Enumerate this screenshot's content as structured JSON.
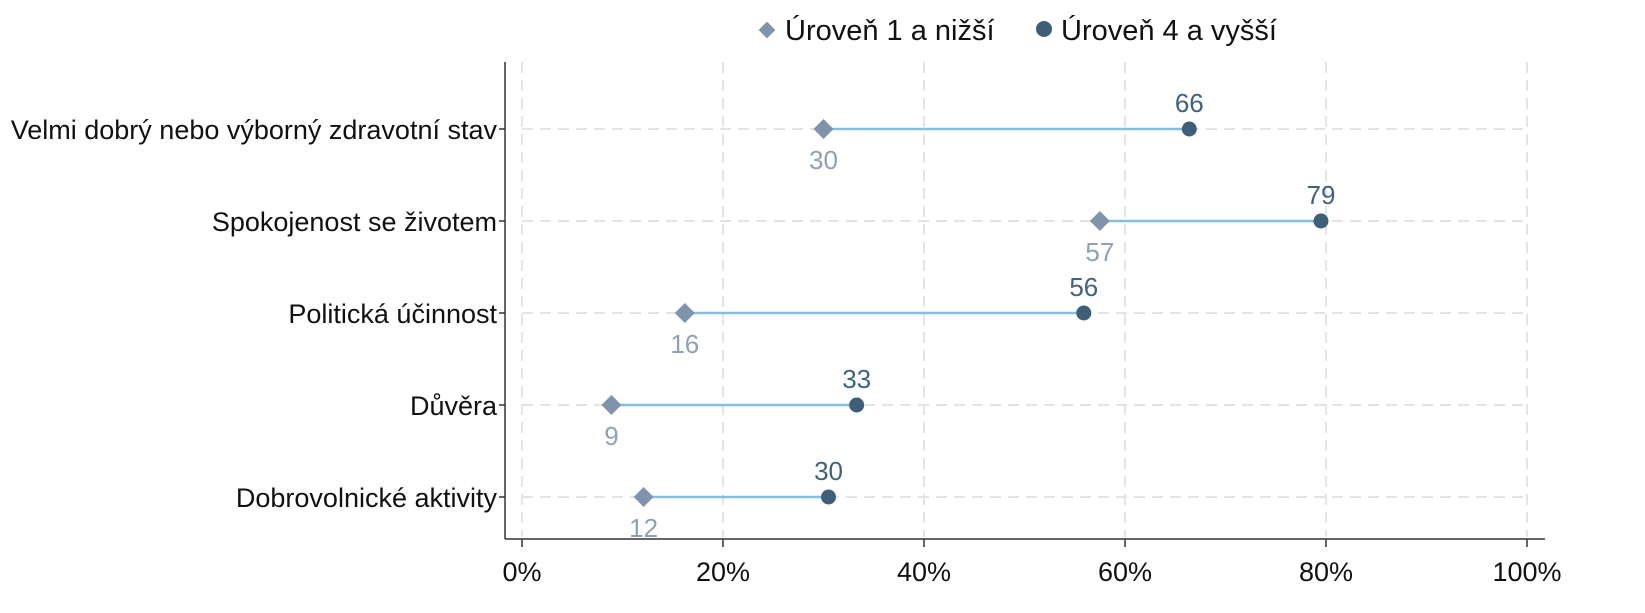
{
  "chart_data": {
    "type": "dumbbell",
    "title": "",
    "xlabel": "",
    "ylabel": "",
    "xlim": [
      0,
      100
    ],
    "x_ticks": [
      0,
      20,
      40,
      60,
      80,
      100
    ],
    "x_tick_labels": [
      "0%",
      "20%",
      "40%",
      "60%",
      "80%",
      "100%"
    ],
    "grid": true,
    "legend_position": "top",
    "categories": [
      "Velmi dobrý nebo výborný zdravotní stav",
      "Spokojenost se životem",
      "Politická účinnost",
      "Důvěra",
      "Dobrovolnické aktivity"
    ],
    "series": [
      {
        "name": "Úroveň 1 a nižší",
        "marker": "diamond",
        "color": "#7f94aa",
        "label_color": "#8fa0b3",
        "values": [
          30,
          57.5,
          16.2,
          8.9,
          12.1
        ],
        "labels": [
          "30",
          "57",
          "16",
          "9",
          "12"
        ]
      },
      {
        "name": "Úroveň 4 a vyšší",
        "marker": "circle",
        "color": "#3d5f78",
        "label_color": "#41627b",
        "values": [
          66.4,
          79.5,
          55.9,
          33.3,
          30.5
        ],
        "labels": [
          "66",
          "79",
          "56",
          "33",
          "30"
        ]
      }
    ],
    "connector_color": "#86bde2"
  }
}
